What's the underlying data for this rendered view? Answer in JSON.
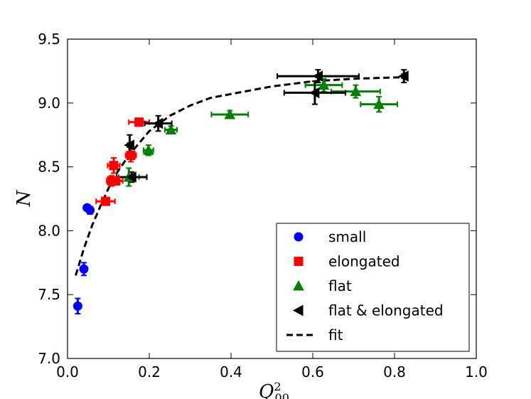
{
  "chart_data": {
    "type": "scatter",
    "title": "",
    "xlabel_base": "Q",
    "xlabel_sup": "2",
    "xlabel_sub": "00",
    "ylabel": "N",
    "xlim": [
      0.0,
      1.0
    ],
    "ylim": [
      7.0,
      9.5
    ],
    "xticks": [
      "0.0",
      "0.2",
      "0.4",
      "0.6",
      "0.8",
      "1.0"
    ],
    "yticks": [
      "7.0",
      "7.5",
      "8.0",
      "8.5",
      "9.0",
      "9.5"
    ],
    "legend_position": "lower-right",
    "series": [
      {
        "name": "small",
        "marker": "circle",
        "color": "#0000ff",
        "points": [
          {
            "x": 0.025,
            "y": 7.41,
            "xerr": 0.0,
            "yerr": 0.06
          },
          {
            "x": 0.04,
            "y": 7.7,
            "xerr": 0.005,
            "yerr": 0.05
          },
          {
            "x": 0.048,
            "y": 8.18,
            "xerr": 0.005,
            "yerr": 0.02
          },
          {
            "x": 0.055,
            "y": 8.16,
            "xerr": 0.008,
            "yerr": 0.03
          }
        ]
      },
      {
        "name": "elongated",
        "marker": "square",
        "color": "#ff0000",
        "points": [
          {
            "x": 0.093,
            "y": 8.23,
            "xerr": 0.023,
            "yerr": 0.03
          },
          {
            "x": 0.108,
            "y": 8.39,
            "xerr": 0.012,
            "yerr": 0.04
          },
          {
            "x": 0.113,
            "y": 8.51,
            "xerr": 0.015,
            "yerr": 0.06
          },
          {
            "x": 0.118,
            "y": 8.39,
            "xerr": 0.017,
            "yerr": 0.03
          },
          {
            "x": 0.155,
            "y": 8.59,
            "xerr": 0.013,
            "yerr": 0.05
          },
          {
            "x": 0.175,
            "y": 8.85,
            "xerr": 0.025,
            "yerr": 0.03
          }
        ]
      },
      {
        "name": "flat",
        "marker": "triangle-up",
        "color": "#008000",
        "points": [
          {
            "x": 0.15,
            "y": 8.42,
            "xerr": 0.025,
            "yerr": 0.07
          },
          {
            "x": 0.198,
            "y": 8.63,
            "xerr": 0.012,
            "yerr": 0.04
          },
          {
            "x": 0.253,
            "y": 8.79,
            "xerr": 0.015,
            "yerr": 0.03
          },
          {
            "x": 0.397,
            "y": 8.91,
            "xerr": 0.045,
            "yerr": 0.03
          },
          {
            "x": 0.627,
            "y": 9.14,
            "xerr": 0.045,
            "yerr": 0.05
          },
          {
            "x": 0.705,
            "y": 9.09,
            "xerr": 0.06,
            "yerr": 0.05
          },
          {
            "x": 0.762,
            "y": 8.99,
            "xerr": 0.045,
            "yerr": 0.06
          }
        ]
      },
      {
        "name": "flat & elongated",
        "marker": "triangle-left",
        "color": "#000000",
        "points": [
          {
            "x": 0.152,
            "y": 8.67,
            "xerr": 0.005,
            "yerr": 0.08
          },
          {
            "x": 0.157,
            "y": 8.42,
            "xerr": 0.037,
            "yerr": 0.04
          },
          {
            "x": 0.222,
            "y": 8.84,
            "xerr": 0.033,
            "yerr": 0.06
          },
          {
            "x": 0.605,
            "y": 9.08,
            "xerr": 0.075,
            "yerr": 0.09
          },
          {
            "x": 0.613,
            "y": 9.21,
            "xerr": 0.1,
            "yerr": 0.05
          },
          {
            "x": 0.823,
            "y": 9.21,
            "xerr": 0.005,
            "yerr": 0.05
          }
        ]
      }
    ],
    "fit": {
      "name": "fit",
      "style": "dashed",
      "color": "#000000",
      "x": [
        0.02,
        0.04,
        0.06,
        0.08,
        0.1,
        0.12,
        0.15,
        0.2,
        0.25,
        0.3,
        0.35,
        0.4,
        0.5,
        0.6,
        0.7,
        0.8,
        0.82
      ],
      "y": [
        7.65,
        7.86,
        8.04,
        8.19,
        8.33,
        8.45,
        8.59,
        8.78,
        8.9,
        8.98,
        9.04,
        9.07,
        9.13,
        9.17,
        9.19,
        9.2,
        9.2
      ]
    }
  }
}
